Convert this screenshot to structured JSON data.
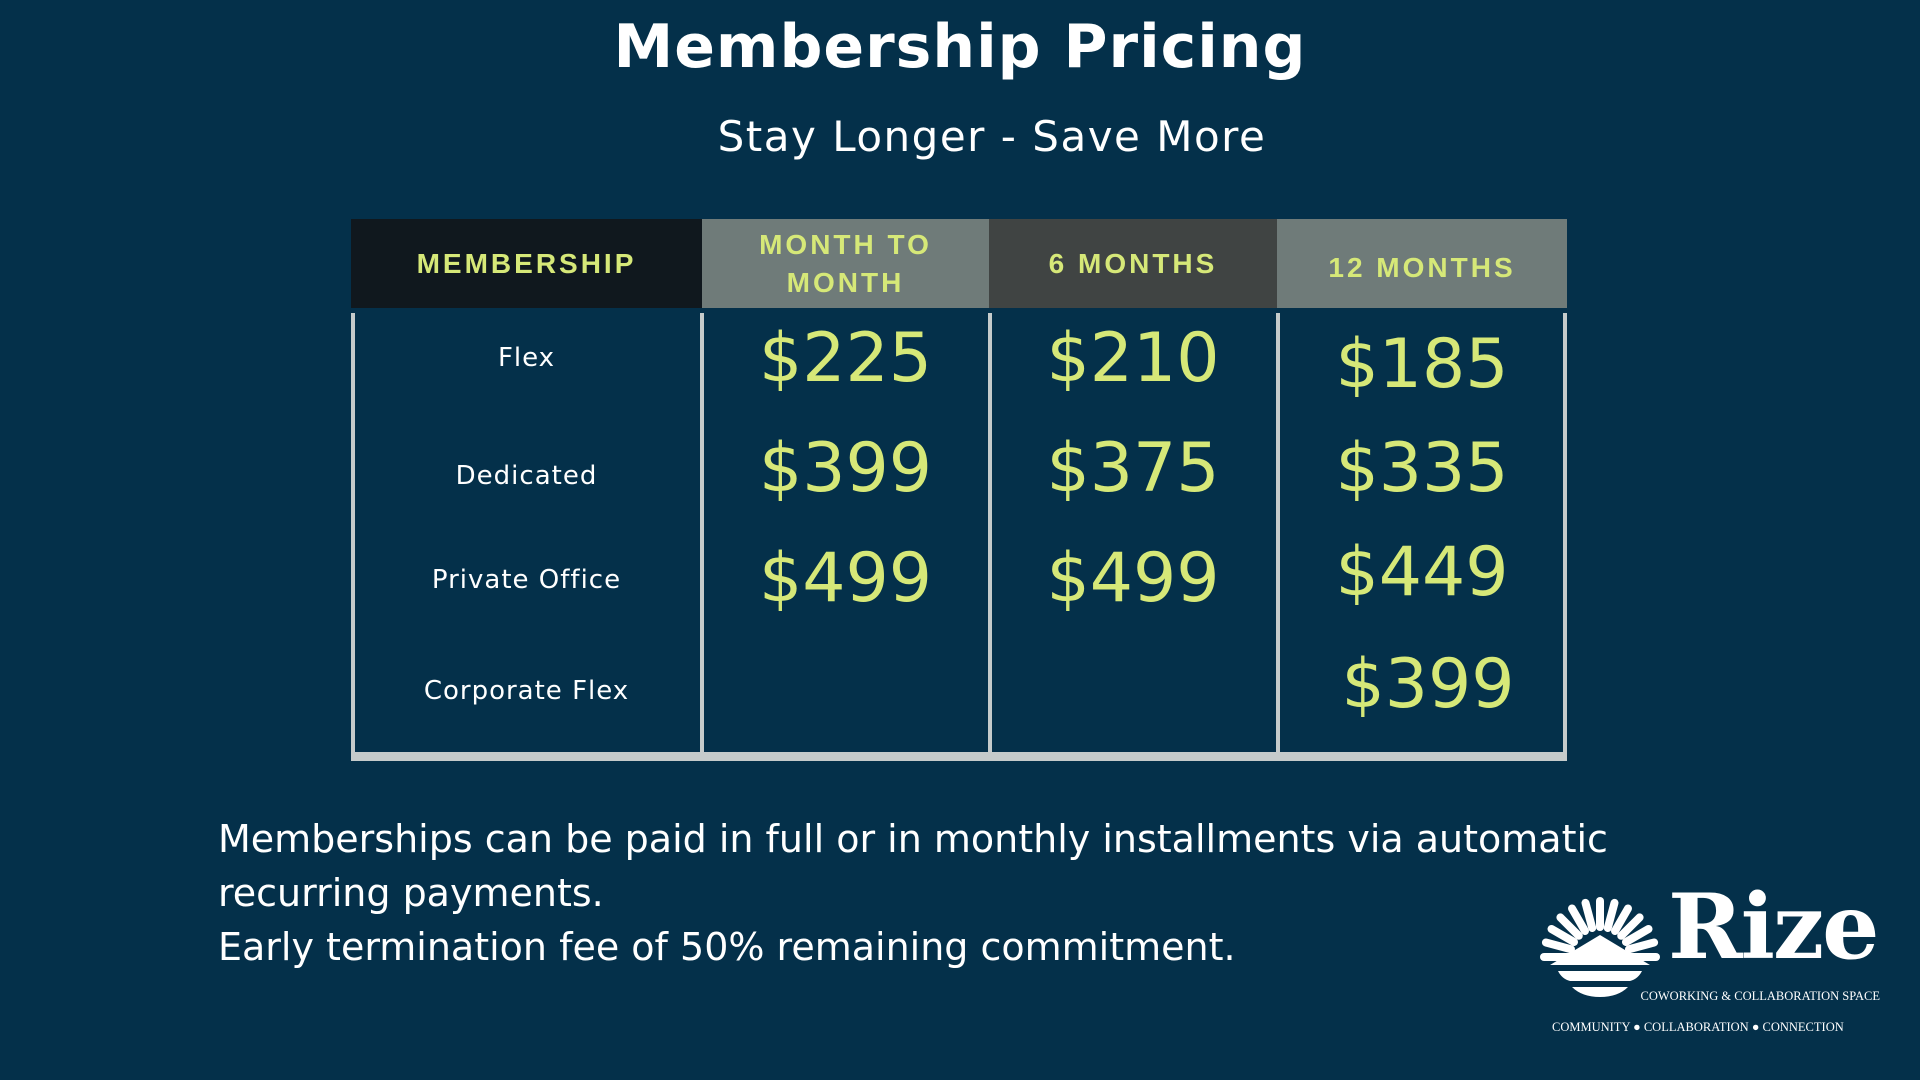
{
  "title": "Membership Pricing",
  "subtitle": "Stay Longer - Save More",
  "colors": {
    "background": "#04304a",
    "accent": "#d6e878",
    "header_bgs": [
      "#10181e",
      "#6f7b79",
      "#404443",
      "#6f7b79"
    ],
    "border": "#c5cbcb"
  },
  "table": {
    "headers": [
      "MEMBERSHIP",
      "MONTH TO MONTH",
      "6 MONTHS",
      "12 MONTHS"
    ],
    "rows": [
      {
        "name": "Flex",
        "prices": [
          "$225",
          "$210",
          "$185"
        ]
      },
      {
        "name": "Dedicated",
        "prices": [
          "$399",
          "$375",
          "$335"
        ]
      },
      {
        "name": "Private Office",
        "prices": [
          "$499",
          "$499",
          "$449"
        ]
      },
      {
        "name": "Corporate Flex",
        "prices": [
          "",
          "",
          "$399"
        ]
      }
    ]
  },
  "footer": {
    "line1": "Memberships can be paid in full or in monthly installments via automatic recurring payments.",
    "line2": "Early termination fee of 50% remaining commitment."
  },
  "logo": {
    "name": "Rize",
    "tagline": "COWORKING & COLLABORATION SPACE",
    "values": [
      "COMMUNITY",
      "COLLABORATION",
      "CONNECTION"
    ]
  }
}
